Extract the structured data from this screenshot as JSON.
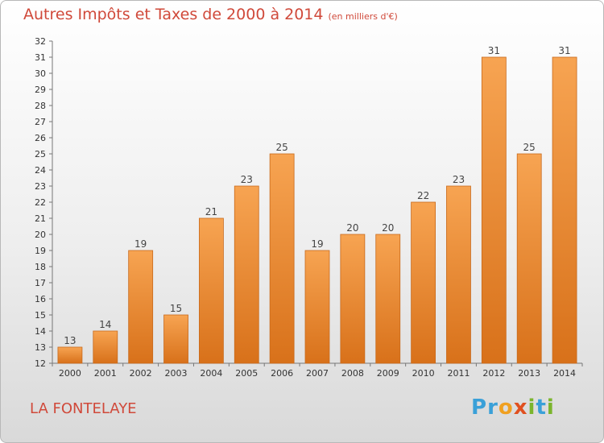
{
  "header": {
    "title": "Autres Impôts et Taxes de 2000 à 2014",
    "subtitle": "(en milliers d'€)"
  },
  "footer": {
    "town": "LA FONTELAYE",
    "logo": [
      "P",
      "r",
      "o",
      "x",
      "i",
      "t",
      "i"
    ],
    "logo_colors": [
      "#3aa0d8",
      "#3aa0d8",
      "#f0a020",
      "#e05020",
      "#7bb52d",
      "#3aa0d8",
      "#7bb52d"
    ]
  },
  "chart_data": {
    "type": "bar",
    "title": "Autres Impôts et Taxes de 2000 à 2014",
    "subtitle": "(en milliers d'€)",
    "categories": [
      "2000",
      "2001",
      "2002",
      "2003",
      "2004",
      "2005",
      "2006",
      "2007",
      "2008",
      "2009",
      "2010",
      "2011",
      "2012",
      "2013",
      "2014"
    ],
    "values": [
      13,
      14,
      19,
      15,
      21,
      23,
      25,
      19,
      20,
      20,
      22,
      23,
      31,
      25,
      31
    ],
    "ylim": [
      12,
      32
    ],
    "yticks": [
      12,
      13,
      14,
      15,
      16,
      17,
      18,
      19,
      20,
      21,
      22,
      23,
      24,
      25,
      26,
      27,
      28,
      29,
      30,
      31,
      32
    ],
    "grid": false,
    "bar_color_top": "#f7a452",
    "bar_color_bottom": "#d8711a",
    "bar_edge": "#c86a1c",
    "axis_color": "#777777"
  }
}
